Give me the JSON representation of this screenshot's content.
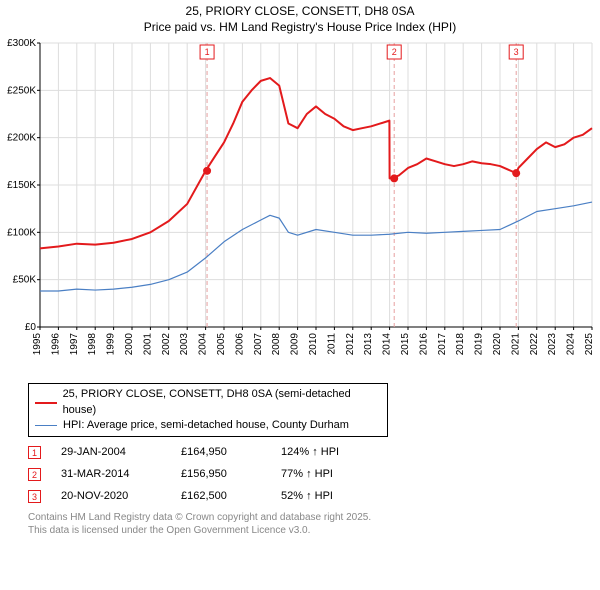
{
  "title": {
    "line1": "25, PRIORY CLOSE, CONSETT, DH8 0SA",
    "line2": "Price paid vs. HM Land Registry's House Price Index (HPI)",
    "fontsize": 12
  },
  "chart": {
    "type": "line",
    "background_color": "#ffffff",
    "plot_bg_color": "#ffffff",
    "grid_color": "#dddddd",
    "axis_color": "#000000",
    "tick_font_size": 10,
    "x": {
      "years": [
        1995,
        1996,
        1997,
        1998,
        1999,
        2000,
        2001,
        2002,
        2003,
        2004,
        2005,
        2006,
        2007,
        2008,
        2009,
        2010,
        2011,
        2012,
        2013,
        2014,
        2015,
        2016,
        2017,
        2018,
        2019,
        2020,
        2021,
        2022,
        2023,
        2024,
        2025
      ],
      "label_rotation": -90
    },
    "y": {
      "min": 0,
      "max": 300000,
      "step": 50000,
      "tick_labels": [
        "£0",
        "£50K",
        "£100K",
        "£150K",
        "£200K",
        "£250K",
        "£300K"
      ]
    },
    "series": [
      {
        "name": "price_paid",
        "label": "25, PRIORY CLOSE, CONSETT, DH8 0SA (semi-detached house)",
        "color": "#e31a1c",
        "line_width": 2,
        "data": [
          [
            1995,
            83000
          ],
          [
            1996,
            85000
          ],
          [
            1997,
            88000
          ],
          [
            1998,
            87000
          ],
          [
            1999,
            89000
          ],
          [
            2000,
            93000
          ],
          [
            2001,
            100000
          ],
          [
            2002,
            112000
          ],
          [
            2003,
            130000
          ],
          [
            2004,
            164950
          ],
          [
            2004.5,
            180000
          ],
          [
            2005,
            195000
          ],
          [
            2005.5,
            215000
          ],
          [
            2006,
            238000
          ],
          [
            2006.5,
            250000
          ],
          [
            2007,
            260000
          ],
          [
            2007.5,
            263000
          ],
          [
            2008,
            255000
          ],
          [
            2008.5,
            215000
          ],
          [
            2009,
            210000
          ],
          [
            2009.5,
            225000
          ],
          [
            2010,
            233000
          ],
          [
            2010.5,
            225000
          ],
          [
            2011,
            220000
          ],
          [
            2011.5,
            212000
          ],
          [
            2012,
            208000
          ],
          [
            2012.5,
            210000
          ],
          [
            2013,
            212000
          ],
          [
            2013.5,
            215000
          ],
          [
            2013.99,
            218000
          ],
          [
            2014,
            156950
          ],
          [
            2014.5,
            160000
          ],
          [
            2015,
            168000
          ],
          [
            2015.5,
            172000
          ],
          [
            2016,
            178000
          ],
          [
            2016.5,
            175000
          ],
          [
            2017,
            172000
          ],
          [
            2017.5,
            170000
          ],
          [
            2018,
            172000
          ],
          [
            2018.5,
            175000
          ],
          [
            2019,
            173000
          ],
          [
            2019.5,
            172000
          ],
          [
            2020,
            170000
          ],
          [
            2020.88,
            162500
          ],
          [
            2021,
            168000
          ],
          [
            2021.5,
            178000
          ],
          [
            2022,
            188000
          ],
          [
            2022.5,
            195000
          ],
          [
            2023,
            190000
          ],
          [
            2023.5,
            193000
          ],
          [
            2024,
            200000
          ],
          [
            2024.5,
            203000
          ],
          [
            2025,
            210000
          ]
        ]
      },
      {
        "name": "hpi",
        "label": "HPI: Average price, semi-detached house, County Durham",
        "color": "#4a7fc4",
        "line_width": 1.2,
        "data": [
          [
            1995,
            38000
          ],
          [
            1996,
            38000
          ],
          [
            1997,
            40000
          ],
          [
            1998,
            39000
          ],
          [
            1999,
            40000
          ],
          [
            2000,
            42000
          ],
          [
            2001,
            45000
          ],
          [
            2002,
            50000
          ],
          [
            2003,
            58000
          ],
          [
            2004,
            73000
          ],
          [
            2005,
            90000
          ],
          [
            2006,
            103000
          ],
          [
            2007,
            113000
          ],
          [
            2007.5,
            118000
          ],
          [
            2008,
            115000
          ],
          [
            2008.5,
            100000
          ],
          [
            2009,
            97000
          ],
          [
            2010,
            103000
          ],
          [
            2011,
            100000
          ],
          [
            2012,
            97000
          ],
          [
            2013,
            97000
          ],
          [
            2014,
            98000
          ],
          [
            2015,
            100000
          ],
          [
            2016,
            99000
          ],
          [
            2017,
            100000
          ],
          [
            2018,
            101000
          ],
          [
            2019,
            102000
          ],
          [
            2020,
            103000
          ],
          [
            2021,
            112000
          ],
          [
            2022,
            122000
          ],
          [
            2023,
            125000
          ],
          [
            2024,
            128000
          ],
          [
            2025,
            132000
          ]
        ]
      }
    ],
    "events": [
      {
        "n": "1",
        "year": 2004.08,
        "price": 164950,
        "color": "#e31a1c"
      },
      {
        "n": "2",
        "year": 2014.25,
        "price": 156950,
        "color": "#e31a1c"
      },
      {
        "n": "3",
        "year": 2020.88,
        "price": 162500,
        "color": "#e31a1c"
      }
    ],
    "event_marker": {
      "border_color": "#e31a1c",
      "fill": "#ffffff",
      "text_color": "#e31a1c",
      "dash": "4,3",
      "dash_color": "#e6a0a0"
    }
  },
  "legend": {
    "items": [
      {
        "color": "#e31a1c",
        "width": 2,
        "label": "25, PRIORY CLOSE, CONSETT, DH8 0SA (semi-detached house)"
      },
      {
        "color": "#4a7fc4",
        "width": 1.2,
        "label": "HPI: Average price, semi-detached house, County Durham"
      }
    ]
  },
  "events_table": {
    "rows": [
      {
        "n": "1",
        "date": "29-JAN-2004",
        "price": "£164,950",
        "delta": "124% ↑ HPI"
      },
      {
        "n": "2",
        "date": "31-MAR-2014",
        "price": "£156,950",
        "delta": "77% ↑ HPI"
      },
      {
        "n": "3",
        "date": "20-NOV-2020",
        "price": "£162,500",
        "delta": "52% ↑ HPI"
      }
    ],
    "marker_color": "#e31a1c"
  },
  "footer": {
    "line1": "Contains HM Land Registry data © Crown copyright and database right 2025.",
    "line2": "This data is licensed under the Open Government Licence v3.0.",
    "color": "#888888"
  }
}
